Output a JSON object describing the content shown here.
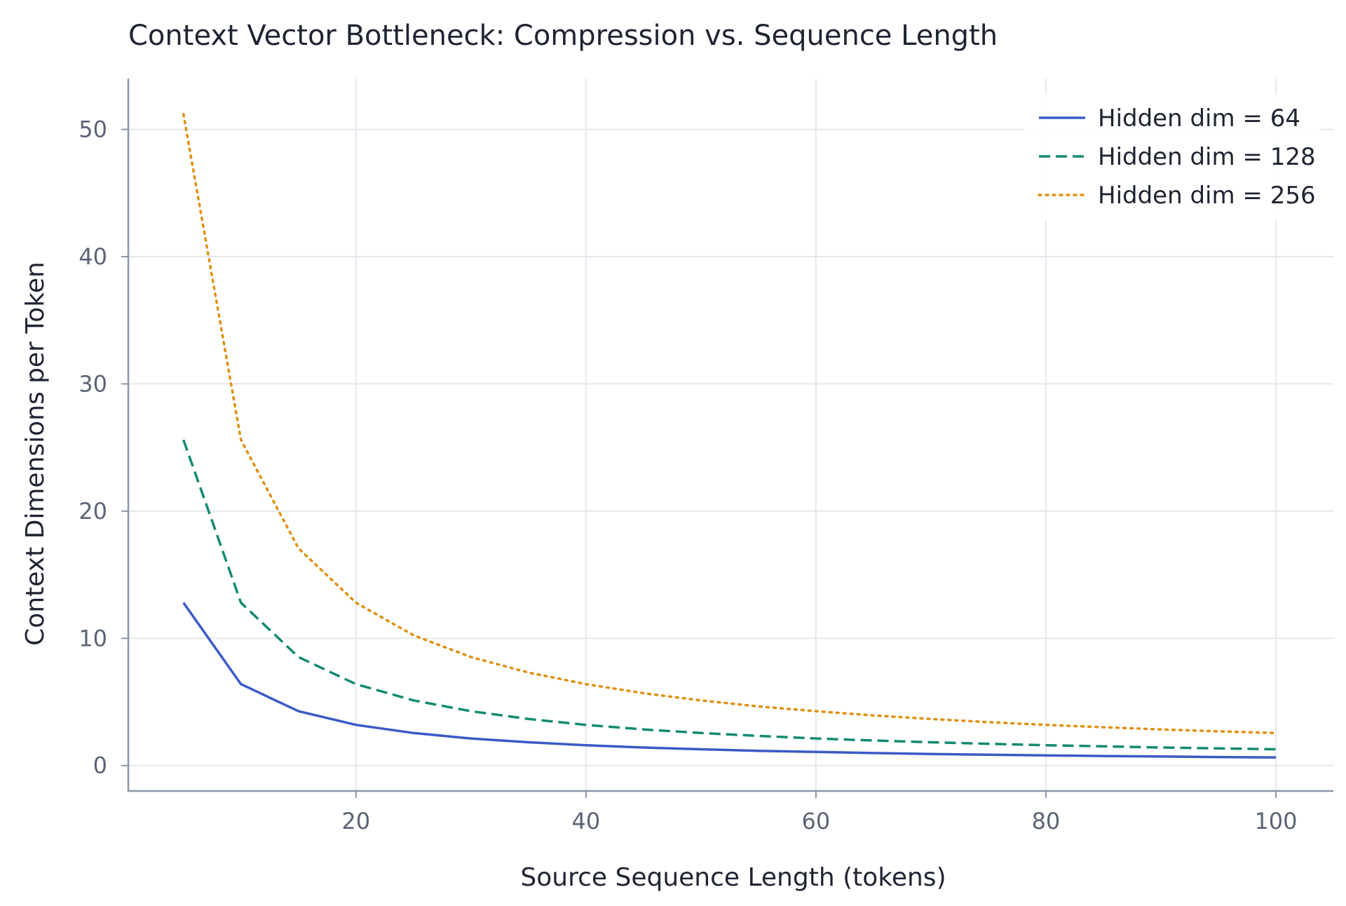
{
  "chart_data": {
    "type": "line",
    "title": "Context Vector Bottleneck: Compression vs. Sequence Length",
    "xlabel": "Source Sequence Length (tokens)",
    "ylabel": "Context Dimensions per Token",
    "xlim": [
      0.2,
      105
    ],
    "ylim": [
      -2,
      54
    ],
    "xticks": [
      20,
      40,
      60,
      80,
      100
    ],
    "yticks": [
      0,
      10,
      20,
      30,
      40,
      50
    ],
    "grid": true,
    "legend_position": "top-right",
    "x": [
      5,
      10,
      15,
      20,
      25,
      30,
      35,
      40,
      45,
      50,
      55,
      60,
      65,
      70,
      75,
      80,
      85,
      90,
      95,
      100
    ],
    "series": [
      {
        "name": "Hidden dim = 64",
        "color": "#3a5bc7",
        "dash": "solid",
        "values": [
          12.8,
          6.4,
          4.27,
          3.2,
          2.56,
          2.13,
          1.83,
          1.6,
          1.42,
          1.28,
          1.16,
          1.07,
          0.98,
          0.91,
          0.85,
          0.8,
          0.75,
          0.71,
          0.67,
          0.64
        ]
      },
      {
        "name": "Hidden dim = 128",
        "color": "#138a72",
        "dash": "dashed",
        "values": [
          25.6,
          12.8,
          8.53,
          6.4,
          5.12,
          4.27,
          3.66,
          3.2,
          2.84,
          2.56,
          2.33,
          2.13,
          1.97,
          1.83,
          1.71,
          1.6,
          1.51,
          1.42,
          1.35,
          1.28
        ]
      },
      {
        "name": "Hidden dim = 256",
        "color": "#e09012",
        "dash": "dotted",
        "values": [
          51.2,
          25.6,
          17.07,
          12.8,
          10.24,
          8.53,
          7.31,
          6.4,
          5.69,
          5.12,
          4.65,
          4.27,
          3.94,
          3.66,
          3.41,
          3.2,
          3.01,
          2.84,
          2.69,
          2.56
        ]
      }
    ]
  }
}
